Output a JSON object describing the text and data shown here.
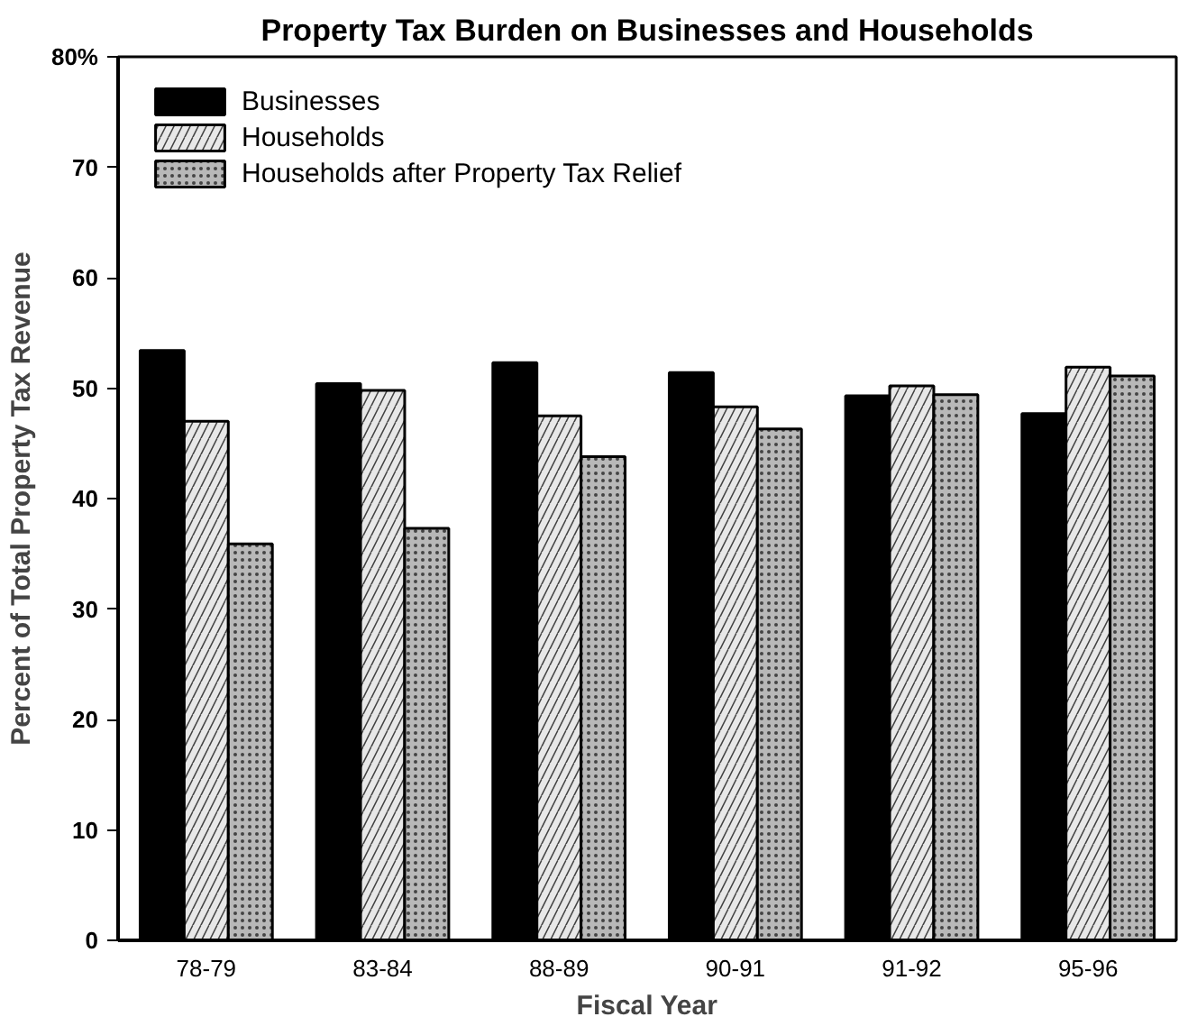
{
  "chart_data": {
    "type": "bar",
    "title": "Property Tax Burden on Businesses and Households",
    "xlabel": "Fiscal Year",
    "ylabel": "Percent of Total Property Tax Revenue",
    "categories": [
      "78-79",
      "83-84",
      "88-89",
      "90-91",
      "91-92",
      "95-96"
    ],
    "series": [
      {
        "name": "Businesses",
        "color": "#000000",
        "values": [
          53.4,
          50.4,
          52.3,
          51.4,
          49.3,
          47.7
        ]
      },
      {
        "name": "Households",
        "color": "#e8e8e8",
        "values": [
          47.0,
          49.8,
          47.5,
          48.3,
          50.2,
          51.9
        ]
      },
      {
        "name": "Households after Property Tax Relief",
        "color": "#b8b8b8",
        "values": [
          35.9,
          37.3,
          43.8,
          46.3,
          49.4,
          51.1
        ]
      }
    ],
    "ylim": [
      0,
      80
    ],
    "yticks": [
      0,
      10,
      20,
      30,
      40,
      50,
      60,
      70,
      {
        "value": 80,
        "label": "80%"
      }
    ],
    "grid": false,
    "legend": "top left"
  }
}
